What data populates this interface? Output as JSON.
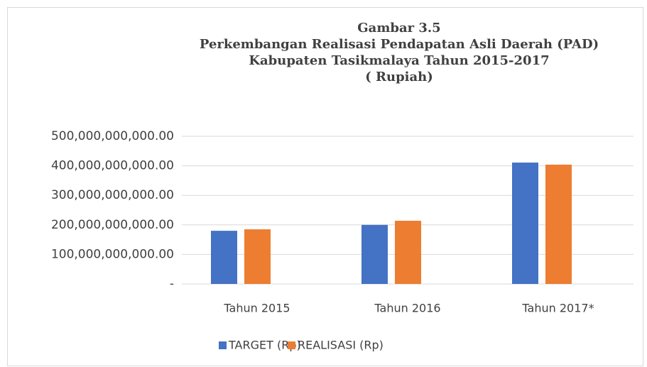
{
  "chart_data": {
    "type": "bar",
    "title": [
      "Gambar 3.5",
      "Perkembangan Realisasi Pendapatan Asli Daerah (PAD)",
      "Kabupaten Tasikmalaya Tahun 2015-2017",
      "( Rupiah)"
    ],
    "categories": [
      "Tahun 2015",
      "Tahun 2016",
      "Tahun 2017*"
    ],
    "series": [
      {
        "name": "TARGET (Rp)",
        "color": "#4472c4",
        "values": [
          180000000000,
          200000000000,
          411000000000
        ]
      },
      {
        "name": "REALISASI (Rp)",
        "color": "#ed7d31",
        "values": [
          185000000000,
          214000000000,
          404000000000
        ]
      }
    ],
    "ylim": [
      0,
      500000000000
    ],
    "yticks": [
      {
        "value": 0,
        "label": "-"
      },
      {
        "value": 100000000000,
        "label": "100,000,000,000.00"
      },
      {
        "value": 200000000000,
        "label": "200,000,000,000.00"
      },
      {
        "value": 300000000000,
        "label": "300,000,000,000.00"
      },
      {
        "value": 400000000000,
        "label": "400,000,000,000.00"
      },
      {
        "value": 500000000000,
        "label": "500,000,000,000.00"
      }
    ],
    "grid": true,
    "legend": "bottom"
  }
}
